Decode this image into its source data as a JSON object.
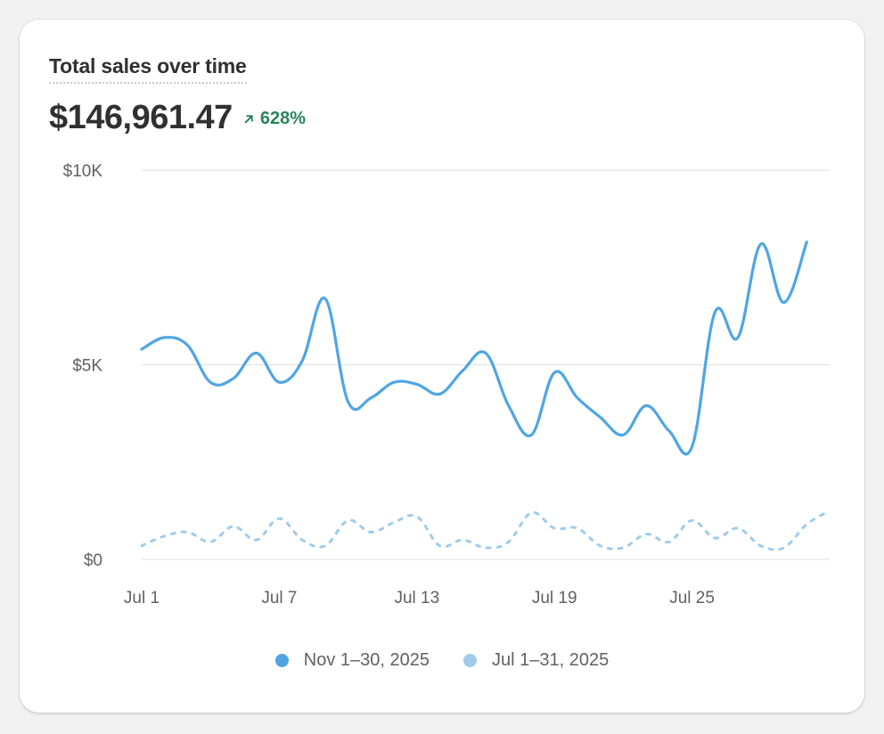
{
  "card": {
    "title": "Total sales over time",
    "total": "$146,961.47",
    "change": "628%",
    "change_direction": "up",
    "change_icon": "arrow-up-right-icon",
    "change_color": "#29845a"
  },
  "colors": {
    "primary_series": "#4fa5e4",
    "comparison_series": "#9fcbeb",
    "grid": "#e3e3e3"
  },
  "chart_data": {
    "type": "line",
    "ylim": [
      0,
      10000
    ],
    "yticks": [
      {
        "value": 0,
        "label": "$0"
      },
      {
        "value": 5000,
        "label": "$5K"
      },
      {
        "value": 10000,
        "label": "$10K"
      }
    ],
    "xticks": [
      {
        "day": 1,
        "label": "Jul 1"
      },
      {
        "day": 7,
        "label": "Jul 7"
      },
      {
        "day": 13,
        "label": "Jul 13"
      },
      {
        "day": 19,
        "label": "Jul 19"
      },
      {
        "day": 25,
        "label": "Jul 25"
      }
    ],
    "grid": true,
    "legend_position": "bottom-center",
    "series": [
      {
        "name": "Nov 1–30, 2025",
        "style": "solid",
        "color": "#4fa5e4",
        "x": [
          1,
          2,
          3,
          4,
          5,
          6,
          7,
          8,
          9,
          10,
          11,
          12,
          13,
          14,
          15,
          16,
          17,
          18,
          19,
          20,
          21,
          22,
          23,
          24,
          25,
          26,
          27,
          28,
          29,
          30
        ],
        "values": [
          5400,
          5700,
          5500,
          4550,
          4650,
          5300,
          4550,
          5100,
          6700,
          4050,
          4150,
          4550,
          4500,
          4250,
          4850,
          5300,
          3950,
          3200,
          4800,
          4150,
          3650,
          3200,
          3950,
          3300,
          2900,
          6350,
          5700,
          8100,
          6600,
          8150
        ]
      },
      {
        "name": "Jul 1–31, 2025",
        "style": "dashed",
        "color": "#9fcbeb",
        "x": [
          1,
          2,
          3,
          4,
          5,
          6,
          7,
          8,
          9,
          10,
          11,
          12,
          13,
          14,
          15,
          16,
          17,
          18,
          19,
          20,
          21,
          22,
          23,
          24,
          25,
          26,
          27,
          28,
          29,
          30,
          31
        ],
        "values": [
          350,
          600,
          700,
          450,
          850,
          500,
          1050,
          500,
          350,
          1000,
          700,
          950,
          1100,
          350,
          500,
          300,
          450,
          1200,
          800,
          800,
          350,
          300,
          650,
          450,
          1000,
          550,
          800,
          350,
          300,
          900,
          1250
        ]
      }
    ]
  }
}
